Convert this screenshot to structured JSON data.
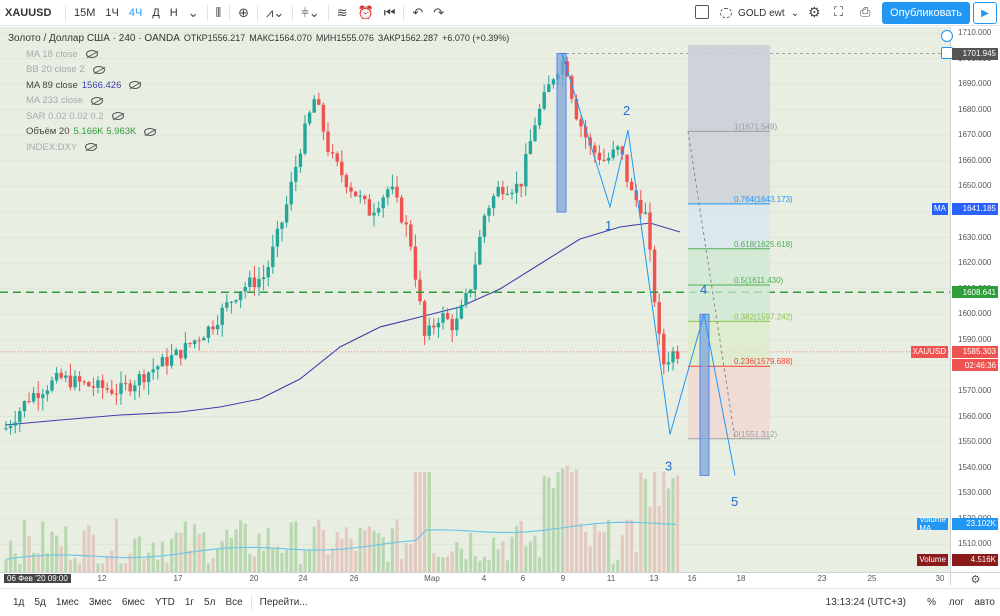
{
  "toolbar": {
    "symbol": "XAUUSD",
    "intervals": [
      "15М",
      "1Ч",
      "4Ч",
      "Д",
      "Н"
    ],
    "active_interval": "4Ч",
    "gold_label": "GOLD ewt",
    "publish_label": "Опубликовать"
  },
  "legend": {
    "title": "Золото / Доллар США · 240 · OANDA",
    "open": "ОТКР1556.217",
    "high": "МАКС1564.070",
    "low": "МИН1555.076",
    "close": "ЗАКР1562.287",
    "change": "+6.070 (+0.39%)",
    "indicators": [
      {
        "label": "MA 18 close",
        "value": "",
        "muted": true
      },
      {
        "label": "BB 20 close 2",
        "value": "",
        "muted": true
      },
      {
        "label": "MA 89 close",
        "value": "1566.426",
        "muted": false
      },
      {
        "label": "MA 233 close",
        "value": "",
        "muted": true
      },
      {
        "label": "SAR 0.02 0.02 0.2",
        "value": "",
        "muted": true
      },
      {
        "label": "Объём 20",
        "value": "5.166K  5.963K",
        "muted": false
      },
      {
        "label": "INDEX:DXY",
        "value": "",
        "muted": true
      }
    ]
  },
  "price_axis": {
    "ticks": [
      "1710.000",
      "1700.000",
      "1690.000",
      "1680.000",
      "1670.000",
      "1660.000",
      "1650.000",
      "1640.000",
      "1630.000",
      "1620.000",
      "1610.000",
      "1600.000",
      "1590.000",
      "1580.000",
      "1570.000",
      "1560.000",
      "1550.000",
      "1540.000",
      "1530.000",
      "1520.000",
      "1510.000"
    ],
    "tags": {
      "top": "1701.945",
      "ma": "1641.185",
      "ma_label": "MA",
      "level": "1608.641",
      "xau_label": "XAUUSD",
      "last": "1585.303",
      "countdown": "02:46:36",
      "vol_ma_label": "Volume MA",
      "vol_ma": "23.102K",
      "vol_label": "Volume",
      "vol": "4.516K"
    }
  },
  "time_axis": {
    "start_label": "06 Фев '20  09:00",
    "labels": [
      "12",
      "17",
      "20",
      "24",
      "26",
      "Мар",
      "4",
      "6",
      "9",
      "11",
      "13",
      "16",
      "18",
      "23",
      "25",
      "30"
    ]
  },
  "fib": {
    "levels": [
      {
        "label": "1(1671.549)",
        "value": 1671.549
      },
      {
        "label": "0.764(1643.173)",
        "value": 1643.173
      },
      {
        "label": "0.618(1625.618)",
        "value": 1625.618
      },
      {
        "label": "0.5(1611.430)",
        "value": 1611.43
      },
      {
        "label": "0.382(1597.242)",
        "value": 1597.242
      },
      {
        "label": "0.236(1579.688)",
        "value": 1579.688
      },
      {
        "label": "0(1551.312)",
        "value": 1551.312
      }
    ]
  },
  "waves": [
    "1",
    "2",
    "3",
    "4",
    "5"
  ],
  "bottom_bar": {
    "ranges": [
      "1д",
      "5д",
      "1мес",
      "3мес",
      "6мес",
      "YTD",
      "1г",
      "5л",
      "Все"
    ],
    "goto": "Перейти...",
    "clock": "13:13:24 (UTC+3)",
    "pct": "%",
    "log": "лог",
    "auto": "авто"
  },
  "colors": {
    "up": "#26a69a",
    "down": "#ef5350",
    "bg": "#e8efe2",
    "ma89": "#3f3faf",
    "level": "#2e9d3a",
    "publish": "#2196f3"
  }
}
